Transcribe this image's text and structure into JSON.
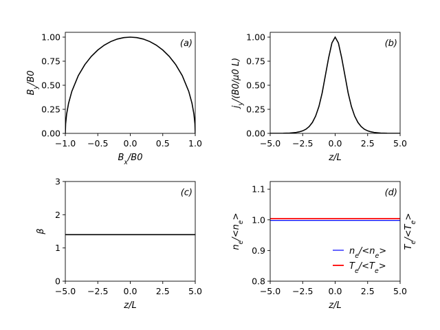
{
  "chart_data": [
    {
      "id": "a",
      "type": "line",
      "panel_label": "(a)",
      "xlabel": "B_x/B_0",
      "ylabel": "B_y/B_0",
      "xlim": [
        -1.0,
        1.0
      ],
      "ylim": [
        0.0,
        1.05
      ],
      "xticks": [
        -1.0,
        -0.5,
        0.0,
        0.5,
        1.0
      ],
      "xtick_labels": [
        "−1.0",
        "−0.5",
        "0.0",
        "0.5",
        "1.0"
      ],
      "yticks": [
        0.0,
        0.25,
        0.5,
        0.75,
        1.0
      ],
      "ytick_labels": [
        "0.00",
        "0.25",
        "0.50",
        "0.75",
        "1.00"
      ],
      "series": [
        {
          "name": "B_y vs B_x",
          "color": "#000000",
          "x": [
            -1.0,
            -0.995,
            -0.98,
            -0.95,
            -0.9,
            -0.8,
            -0.7,
            -0.6,
            -0.5,
            -0.4,
            -0.3,
            -0.2,
            -0.1,
            0.0,
            0.1,
            0.2,
            0.3,
            0.4,
            0.5,
            0.6,
            0.7,
            0.8,
            0.9,
            0.95,
            0.98,
            0.995,
            1.0
          ],
          "y": [
            0.0,
            0.1,
            0.199,
            0.312,
            0.436,
            0.6,
            0.714,
            0.8,
            0.866,
            0.917,
            0.954,
            0.98,
            0.995,
            1.0,
            0.995,
            0.98,
            0.954,
            0.917,
            0.866,
            0.8,
            0.714,
            0.6,
            0.436,
            0.312,
            0.199,
            0.1,
            0.0
          ]
        }
      ]
    },
    {
      "id": "b",
      "type": "line",
      "panel_label": "(b)",
      "xlabel": "z/L",
      "ylabel": "j_y/(B_0/μ_0 L)",
      "xlim": [
        -5.0,
        5.0
      ],
      "ylim": [
        0.0,
        1.05
      ],
      "xticks": [
        -5.0,
        -2.5,
        0.0,
        2.5,
        5.0
      ],
      "xtick_labels": [
        "−5.0",
        "−2.5",
        "0.0",
        "2.5",
        "5.0"
      ],
      "yticks": [
        0.0,
        0.25,
        0.5,
        0.75,
        1.0
      ],
      "ytick_labels": [
        "0.00",
        "0.25",
        "0.50",
        "0.75",
        "1.00"
      ],
      "series": [
        {
          "name": "j_y",
          "color": "#000000",
          "x": [
            -5.0,
            -4.5,
            -4.0,
            -3.5,
            -3.0,
            -2.75,
            -2.5,
            -2.25,
            -2.0,
            -1.75,
            -1.5,
            -1.25,
            -1.0,
            -0.75,
            -0.5,
            -0.25,
            0.0,
            0.25,
            0.5,
            0.75,
            1.0,
            1.25,
            1.5,
            1.75,
            2.0,
            2.25,
            2.5,
            2.75,
            3.0,
            3.5,
            4.0,
            4.5,
            5.0
          ],
          "y": [
            0.0002,
            0.0005,
            0.0013,
            0.0036,
            0.0099,
            0.0163,
            0.0266,
            0.0433,
            0.0707,
            0.1142,
            0.1807,
            0.2791,
            0.42,
            0.6034,
            0.7864,
            0.9391,
            1.0,
            0.9391,
            0.7864,
            0.6034,
            0.42,
            0.2791,
            0.1807,
            0.1142,
            0.0707,
            0.0433,
            0.0266,
            0.0163,
            0.0099,
            0.0036,
            0.0013,
            0.0005,
            0.0002
          ]
        }
      ]
    },
    {
      "id": "c",
      "type": "line",
      "panel_label": "(c)",
      "xlabel": "z/L",
      "ylabel": "β",
      "xlim": [
        -5.0,
        5.0
      ],
      "ylim": [
        0.0,
        3.0
      ],
      "xticks": [
        -5.0,
        -2.5,
        0.0,
        2.5,
        5.0
      ],
      "xtick_labels": [
        "−5.0",
        "−2.5",
        "0.0",
        "2.5",
        "5.0"
      ],
      "yticks": [
        0,
        1,
        2,
        3
      ],
      "ytick_labels": [
        "0",
        "1",
        "2",
        "3"
      ],
      "series": [
        {
          "name": "beta",
          "color": "#000000",
          "x": [
            -5.0,
            5.0
          ],
          "y": [
            1.4,
            1.4
          ]
        }
      ]
    },
    {
      "id": "d",
      "type": "line",
      "panel_label": "(d)",
      "xlabel": "z/L",
      "ylabel": "n_e/<n_e>",
      "ylabel_right": "T_e/<T_e>",
      "xlim": [
        -5.0,
        5.0
      ],
      "ylim": [
        0.8,
        1.125
      ],
      "xticks": [
        -5.0,
        -2.5,
        0.0,
        2.5,
        5.0
      ],
      "xtick_labels": [
        "−5.0",
        "−2.5",
        "0.0",
        "2.5",
        "5.0"
      ],
      "yticks": [
        0.8,
        0.9,
        1.0,
        1.1
      ],
      "ytick_labels": [
        "0.8",
        "0.9",
        "1.0",
        "1.1"
      ],
      "legend_position": "lower-right",
      "series": [
        {
          "name": "n_e/<n_e>",
          "legend_label": "n_e/<n_e>",
          "color": "#0000ff",
          "x": [
            -5.0,
            5.0
          ],
          "y": [
            0.998,
            0.998
          ]
        },
        {
          "name": "T_e/<T_e>",
          "legend_label": "T_e/<T_e>",
          "color": "#ff0000",
          "x": [
            -5.0,
            5.0
          ],
          "y": [
            1.004,
            1.004
          ]
        }
      ]
    }
  ]
}
